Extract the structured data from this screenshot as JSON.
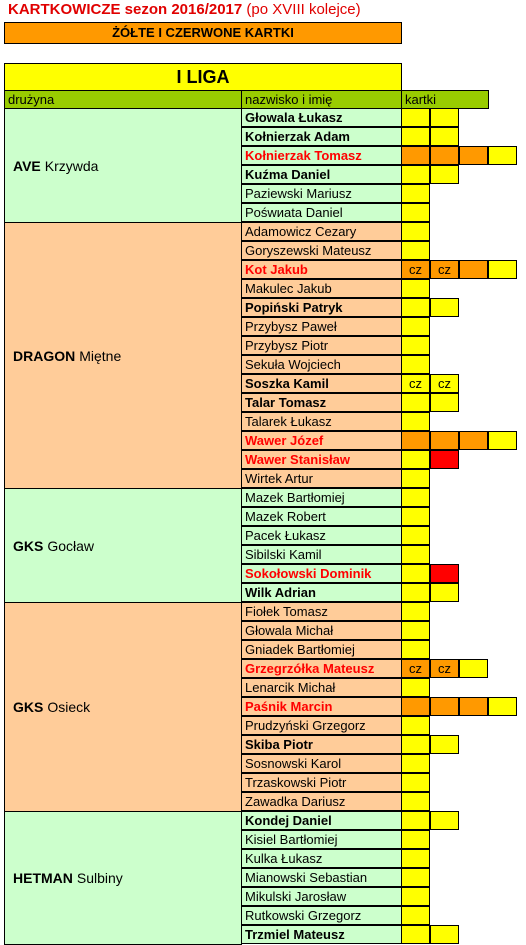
{
  "header": {
    "title": "KARTKOWICZE sezon 2016/2017",
    "note": "(po XVIII kolejce)",
    "subtitle": "ŻÓŁTE I CZERWONE KARTKI",
    "league": "I LIGA",
    "col_team": "drużyna",
    "col_player": "nazwisko i imię",
    "col_cards": "kartki"
  },
  "colors": {
    "yellow": "#ffff00",
    "orange": "#ff9900",
    "red": "#ff0000",
    "green": "#ccffcc",
    "peach": "#ffcc99",
    "header_green": "#99cc00"
  },
  "teams": [
    {
      "name": "AVE",
      "place": "Krzywda",
      "bg": "green",
      "players": [
        {
          "name": "Głowala Łukasz",
          "style": "bold",
          "cards": [
            [
              "y",
              ""
            ],
            [
              "y",
              ""
            ]
          ]
        },
        {
          "name": "Kołnierzak Adam",
          "style": "bold",
          "cards": [
            [
              "y",
              ""
            ],
            [
              "y",
              ""
            ]
          ]
        },
        {
          "name": "Kołnierzak Tomasz",
          "style": "red",
          "cards": [
            [
              "o",
              ""
            ],
            [
              "o",
              ""
            ],
            [
              "o",
              ""
            ],
            [
              "y",
              ""
            ]
          ]
        },
        {
          "name": "Kuźma Daniel",
          "style": "bold",
          "cards": [
            [
              "y",
              ""
            ],
            [
              "y",
              ""
            ]
          ]
        },
        {
          "name": "Paziewski Mariusz",
          "style": "",
          "cards": [
            [
              "y",
              ""
            ]
          ]
        },
        {
          "name": "Pośwиata Daniel",
          "style": "",
          "cards": [
            [
              "y",
              ""
            ]
          ]
        }
      ]
    },
    {
      "name": "DRAGON",
      "place": "Miętne",
      "bg": "peach",
      "players": [
        {
          "name": "Adamowicz Cezary",
          "style": "",
          "cards": [
            [
              "y",
              ""
            ]
          ]
        },
        {
          "name": "Goryszewski Mateusz",
          "style": "",
          "cards": [
            [
              "y",
              ""
            ]
          ]
        },
        {
          "name": "Kot Jakub",
          "style": "red",
          "cards": [
            [
              "o",
              "cz"
            ],
            [
              "o",
              "cz"
            ],
            [
              "o",
              ""
            ],
            [
              "y",
              ""
            ]
          ]
        },
        {
          "name": "Makulec Jakub",
          "style": "",
          "cards": [
            [
              "y",
              ""
            ]
          ]
        },
        {
          "name": "Popiński Patryk",
          "style": "bold",
          "cards": [
            [
              "y",
              ""
            ],
            [
              "y",
              ""
            ]
          ]
        },
        {
          "name": "Przybysz Paweł",
          "style": "",
          "cards": [
            [
              "y",
              ""
            ]
          ]
        },
        {
          "name": "Przybysz Piotr",
          "style": "",
          "cards": [
            [
              "y",
              ""
            ]
          ]
        },
        {
          "name": "Sekuła Wojciech",
          "style": "",
          "cards": [
            [
              "y",
              ""
            ]
          ]
        },
        {
          "name": "Soszka Kamil",
          "style": "bold",
          "cards": [
            [
              "y",
              "cz"
            ],
            [
              "y",
              "cz"
            ]
          ]
        },
        {
          "name": "Talar Tomasz",
          "style": "bold",
          "cards": [
            [
              "y",
              ""
            ],
            [
              "y",
              ""
            ]
          ]
        },
        {
          "name": "Talarek Łukasz",
          "style": "",
          "cards": [
            [
              "y",
              ""
            ]
          ]
        },
        {
          "name": "Wawer Józef",
          "style": "red",
          "cards": [
            [
              "o",
              ""
            ],
            [
              "o",
              ""
            ],
            [
              "o",
              ""
            ],
            [
              "y",
              ""
            ]
          ]
        },
        {
          "name": "Wawer Stanisław",
          "style": "red",
          "cards": [
            [
              "y",
              ""
            ],
            [
              "r",
              ""
            ]
          ]
        },
        {
          "name": "Wirtek Artur",
          "style": "",
          "cards": [
            [
              "y",
              ""
            ]
          ]
        }
      ]
    },
    {
      "name": "GKS",
      "place": "Gocław",
      "bg": "green",
      "players": [
        {
          "name": "Mazek Bartłomiej",
          "style": "",
          "cards": [
            [
              "y",
              ""
            ]
          ]
        },
        {
          "name": "Mazek Robert",
          "style": "",
          "cards": [
            [
              "y",
              ""
            ]
          ]
        },
        {
          "name": "Pacek Łukasz",
          "style": "",
          "cards": [
            [
              "y",
              ""
            ]
          ]
        },
        {
          "name": "Sibilski Kamil",
          "style": "",
          "cards": [
            [
              "y",
              ""
            ]
          ]
        },
        {
          "name": "Sokołowski Dominik",
          "style": "red",
          "cards": [
            [
              "y",
              ""
            ],
            [
              "r",
              ""
            ]
          ]
        },
        {
          "name": "Wilk Adrian",
          "style": "bold",
          "cards": [
            [
              "y",
              ""
            ],
            [
              "y",
              ""
            ]
          ]
        }
      ]
    },
    {
      "name": "GKS",
      "place": "Osieck",
      "bg": "peach",
      "players": [
        {
          "name": "Fiołek Tomasz",
          "style": "",
          "cards": [
            [
              "y",
              ""
            ]
          ]
        },
        {
          "name": "Głowala Michał",
          "style": "",
          "cards": [
            [
              "y",
              ""
            ]
          ]
        },
        {
          "name": "Gniadek Bartłomiej",
          "style": "",
          "cards": [
            [
              "y",
              ""
            ]
          ]
        },
        {
          "name": "Grzegrzółka Mateusz",
          "style": "red",
          "cards": [
            [
              "o",
              "cz"
            ],
            [
              "o",
              "cz"
            ],
            [
              "y",
              ""
            ]
          ]
        },
        {
          "name": "Lenarcik Michał",
          "style": "",
          "cards": [
            [
              "y",
              ""
            ]
          ]
        },
        {
          "name": "Paśnik Marcin",
          "style": "red",
          "cards": [
            [
              "o",
              ""
            ],
            [
              "o",
              ""
            ],
            [
              "o",
              ""
            ],
            [
              "y",
              ""
            ]
          ]
        },
        {
          "name": "Prudzyński Grzegorz",
          "style": "",
          "cards": [
            [
              "y",
              ""
            ]
          ]
        },
        {
          "name": "Skiba Piotr",
          "style": "bold",
          "cards": [
            [
              "y",
              ""
            ],
            [
              "y",
              ""
            ]
          ]
        },
        {
          "name": "Sosnowski Karol",
          "style": "",
          "cards": [
            [
              "y",
              ""
            ]
          ]
        },
        {
          "name": "Trzaskowski Piotr",
          "style": "",
          "cards": [
            [
              "y",
              ""
            ]
          ]
        },
        {
          "name": "Zawadka Dariusz",
          "style": "",
          "cards": [
            [
              "y",
              ""
            ]
          ]
        }
      ]
    },
    {
      "name": "HETMAN",
      "place": "Sulbiny",
      "bg": "green",
      "players": [
        {
          "name": "Kondej Daniel",
          "style": "bold",
          "cards": [
            [
              "y",
              ""
            ],
            [
              "y",
              ""
            ]
          ]
        },
        {
          "name": "Kisiel Bartłomiej",
          "style": "",
          "cards": [
            [
              "y",
              ""
            ]
          ]
        },
        {
          "name": "Kulka Łukasz",
          "style": "",
          "cards": [
            [
              "y",
              ""
            ]
          ]
        },
        {
          "name": "Mianowski Sebastian",
          "style": "",
          "cards": [
            [
              "y",
              ""
            ]
          ]
        },
        {
          "name": "Mikulski Jarosław",
          "style": "",
          "cards": [
            [
              "y",
              ""
            ]
          ]
        },
        {
          "name": "Rutkowski Grzegorz",
          "style": "",
          "cards": [
            [
              "y",
              ""
            ]
          ]
        },
        {
          "name": "Trzmiel Mateusz",
          "style": "bold",
          "cards": [
            [
              "y",
              ""
            ],
            [
              "y",
              ""
            ]
          ]
        }
      ]
    }
  ]
}
